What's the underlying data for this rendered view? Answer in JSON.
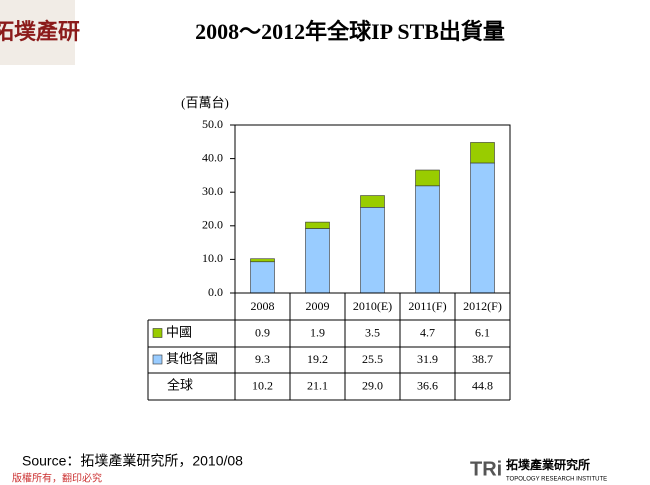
{
  "page": {
    "corner_logo": "拓墣產研",
    "source": "Source：拓墣產業研究所，2010/08",
    "footer": "版權所有，翻印必究",
    "logo_mark": "TRi",
    "logo_name": "拓墣產業研究所",
    "logo_sub": "TOPOLOGY RESEARCH INSTITUTE"
  },
  "chart_data": {
    "type": "bar",
    "stacked": true,
    "title": "2008～2012年全球IP STB出貨量",
    "y_label": "(百萬台)",
    "categories": [
      "2008",
      "2009",
      "2010(E)",
      "2011(F)",
      "2012(F)"
    ],
    "series": [
      {
        "name": "中國",
        "color": "#99cc00",
        "values": [
          0.9,
          1.9,
          3.5,
          4.7,
          6.1
        ]
      },
      {
        "name": "其他各國",
        "color": "#99ccff",
        "values": [
          9.3,
          19.2,
          25.5,
          31.9,
          38.7
        ]
      }
    ],
    "totals": {
      "name": "全球",
      "values": [
        10.2,
        21.1,
        29.0,
        36.6,
        44.8
      ],
      "value_labels": [
        "10.2",
        "21.1",
        "29.0",
        "36.6",
        "44.8"
      ]
    },
    "ylim": [
      0,
      50
    ],
    "yticks": [
      {
        "value": 0,
        "label": "0.0"
      },
      {
        "value": 10,
        "label": "10.0"
      },
      {
        "value": 20,
        "label": "20.0"
      },
      {
        "value": 30,
        "label": "30.0"
      },
      {
        "value": 40,
        "label": "40.0"
      },
      {
        "value": 50,
        "label": "50.0"
      }
    ]
  }
}
